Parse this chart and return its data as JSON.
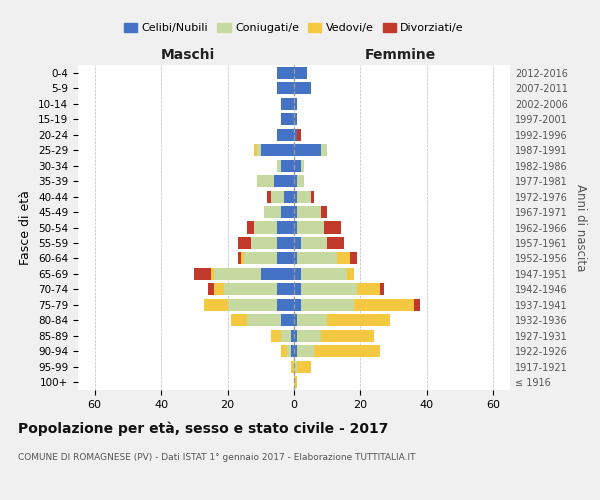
{
  "age_groups": [
    "100+",
    "95-99",
    "90-94",
    "85-89",
    "80-84",
    "75-79",
    "70-74",
    "65-69",
    "60-64",
    "55-59",
    "50-54",
    "45-49",
    "40-44",
    "35-39",
    "30-34",
    "25-29",
    "20-24",
    "15-19",
    "10-14",
    "5-9",
    "0-4"
  ],
  "birth_years": [
    "≤ 1916",
    "1917-1921",
    "1922-1926",
    "1927-1931",
    "1932-1936",
    "1937-1941",
    "1942-1946",
    "1947-1951",
    "1952-1956",
    "1957-1961",
    "1962-1966",
    "1967-1971",
    "1972-1976",
    "1977-1981",
    "1982-1986",
    "1987-1991",
    "1992-1996",
    "1997-2001",
    "2002-2006",
    "2007-2011",
    "2012-2016"
  ],
  "maschi_celibi": [
    0,
    0,
    1,
    1,
    4,
    5,
    5,
    10,
    5,
    5,
    5,
    4,
    3,
    6,
    4,
    10,
    5,
    4,
    4,
    5,
    5
  ],
  "maschi_coniugati": [
    0,
    0,
    1,
    3,
    10,
    15,
    16,
    14,
    10,
    8,
    7,
    5,
    4,
    5,
    1,
    1,
    0,
    0,
    0,
    0,
    0
  ],
  "maschi_vedovi": [
    0,
    1,
    2,
    3,
    5,
    7,
    3,
    1,
    1,
    0,
    0,
    0,
    0,
    0,
    0,
    1,
    0,
    0,
    0,
    0,
    0
  ],
  "maschi_divorziati": [
    0,
    0,
    0,
    0,
    0,
    0,
    2,
    5,
    1,
    4,
    2,
    0,
    1,
    0,
    0,
    0,
    0,
    0,
    0,
    0,
    0
  ],
  "femmine_celibi": [
    0,
    0,
    1,
    1,
    1,
    2,
    2,
    2,
    1,
    2,
    1,
    1,
    1,
    1,
    2,
    8,
    1,
    1,
    1,
    5,
    4
  ],
  "femmine_coniugati": [
    0,
    1,
    5,
    7,
    9,
    16,
    17,
    14,
    12,
    8,
    8,
    7,
    4,
    2,
    1,
    2,
    0,
    0,
    0,
    0,
    0
  ],
  "femmine_vedovi": [
    1,
    4,
    20,
    16,
    19,
    18,
    7,
    2,
    4,
    0,
    0,
    0,
    0,
    0,
    0,
    0,
    0,
    0,
    0,
    0,
    0
  ],
  "femmine_divorziati": [
    0,
    0,
    0,
    0,
    0,
    2,
    1,
    0,
    2,
    5,
    5,
    2,
    1,
    0,
    0,
    0,
    1,
    0,
    0,
    0,
    0
  ],
  "colors": {
    "celibi": "#4472c4",
    "coniugati": "#c5d9a0",
    "vedovi": "#f5c842",
    "divorziati": "#c0392b"
  },
  "xlim": 65,
  "title": "Popolazione per età, sesso e stato civile - 2017",
  "subtitle": "COMUNE DI ROMAGNESE (PV) - Dati ISTAT 1° gennaio 2017 - Elaborazione TUTTITALIA.IT",
  "ylabel_left": "Fasce di età",
  "ylabel_right": "Anni di nascita",
  "xlabel_maschi": "Maschi",
  "xlabel_femmine": "Femmine",
  "bg_color": "#f0f0f0",
  "plot_bg_color": "#ffffff",
  "legend_labels": [
    "Celibi/Nubili",
    "Coniugati/e",
    "Vedovi/e",
    "Divorziati/e"
  ]
}
